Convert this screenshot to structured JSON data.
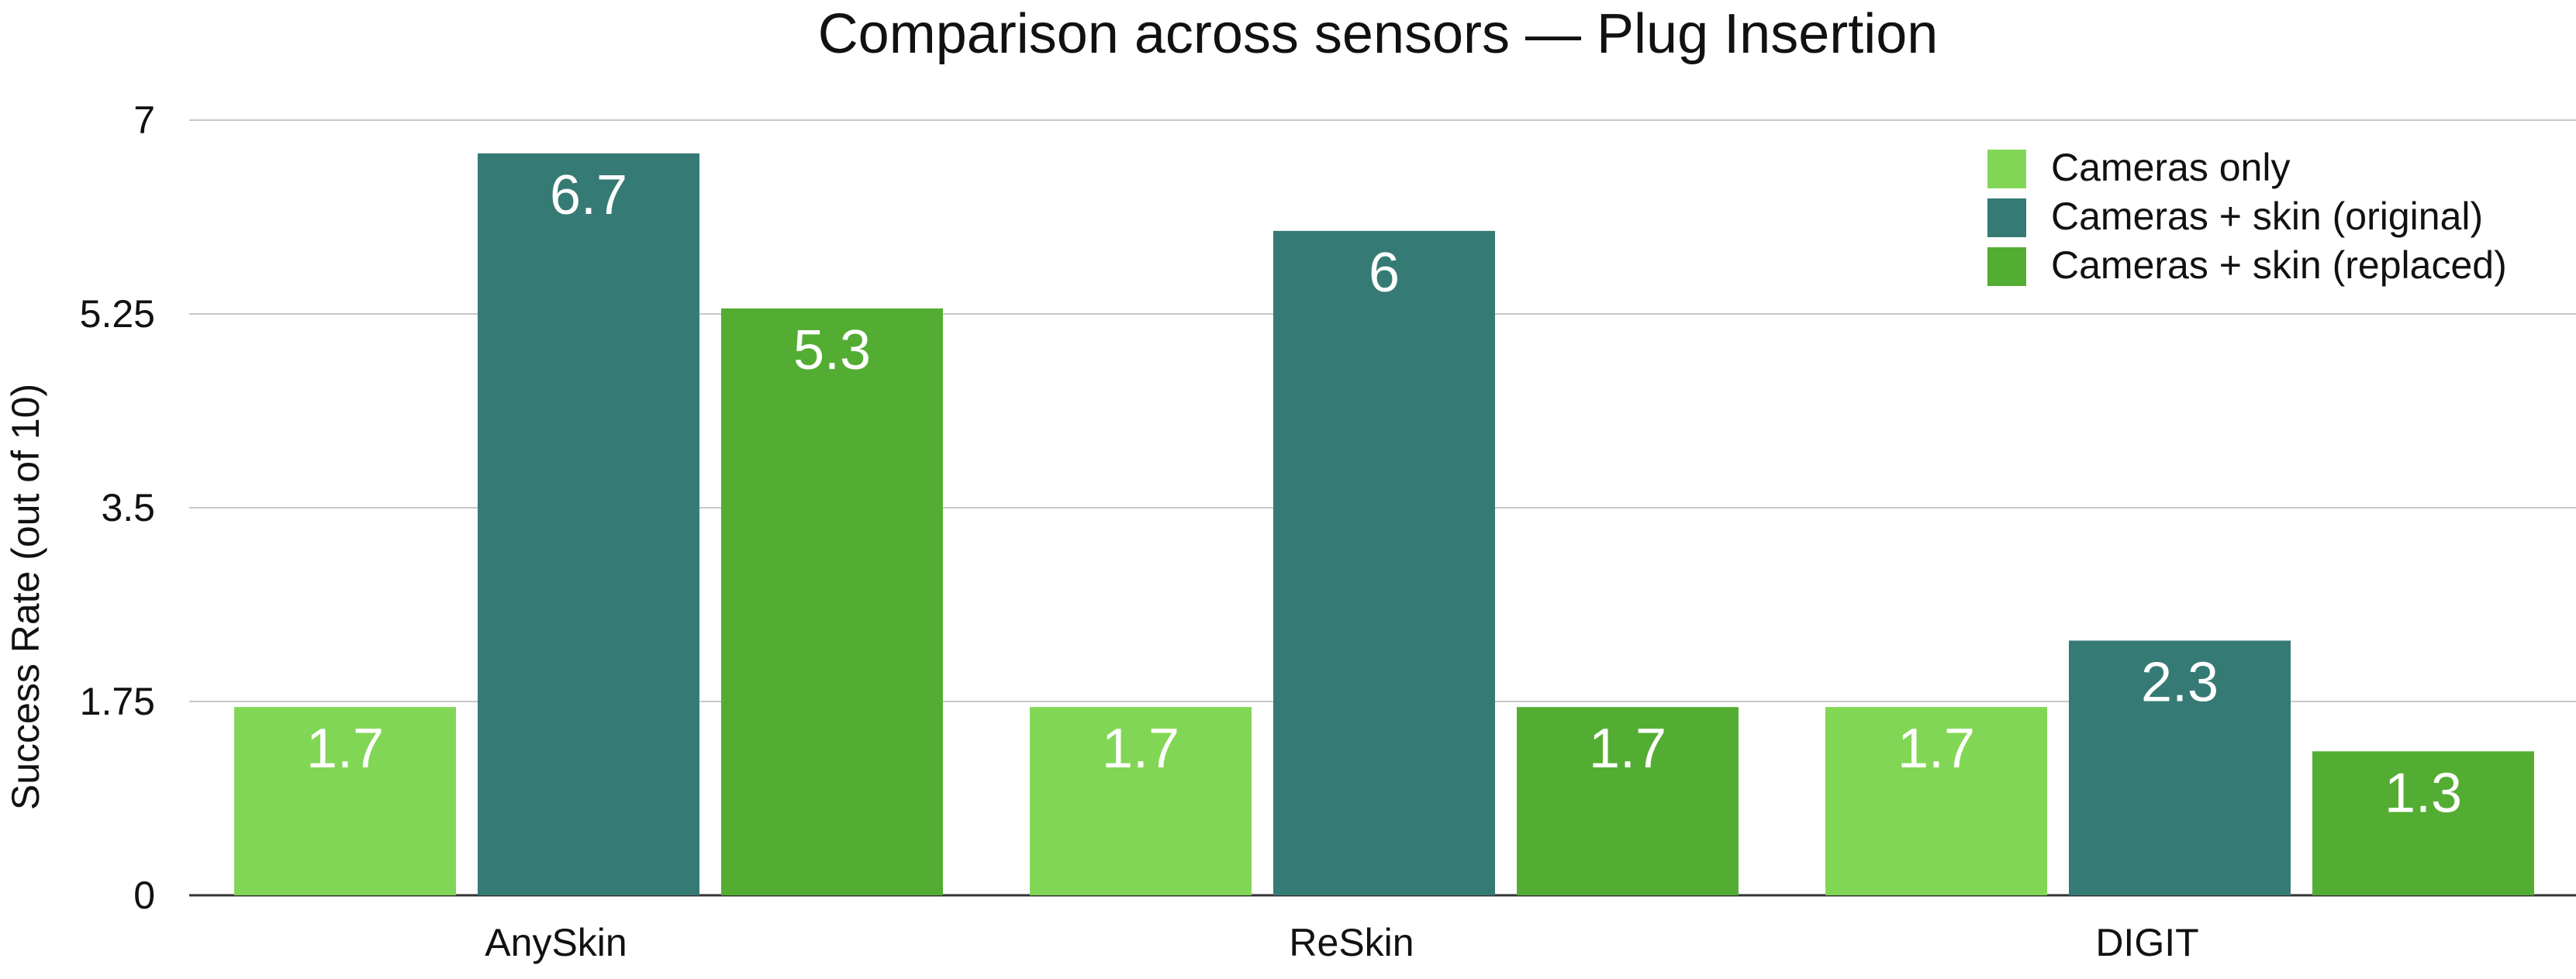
{
  "chart_data": {
    "type": "bar",
    "title": "Comparison across sensors — Plug Insertion",
    "xlabel": "",
    "ylabel": "Success Rate (out of 10)",
    "categories": [
      "AnySkin",
      "ReSkin",
      "DIGIT"
    ],
    "series": [
      {
        "name": "Cameras only",
        "color": "#82d655",
        "values": [
          1.7,
          1.7,
          1.7
        ]
      },
      {
        "name": "Cameras + skin (original)",
        "color": "#367a75",
        "values": [
          6.7,
          6.0,
          2.3
        ]
      },
      {
        "name": "Cameras + skin (replaced)",
        "color": "#54ad33",
        "values": [
          5.3,
          1.7,
          1.3
        ]
      }
    ],
    "data_labels": [
      [
        "1.7",
        "6.7",
        "5.3"
      ],
      [
        "1.7",
        "6",
        "1.7"
      ],
      [
        "1.7",
        "2.3",
        "1.3"
      ]
    ],
    "ylim": [
      0,
      7
    ],
    "yticks": [
      0,
      1.75,
      3.5,
      5.25,
      7
    ],
    "ytick_labels": [
      "0",
      "1.75",
      "3.5",
      "5.25",
      "7"
    ],
    "grid": true,
    "legend_position": "top-right",
    "label_color": "#ffffff",
    "grid_color": "#c8c8c8",
    "axis_color": "#333333"
  }
}
